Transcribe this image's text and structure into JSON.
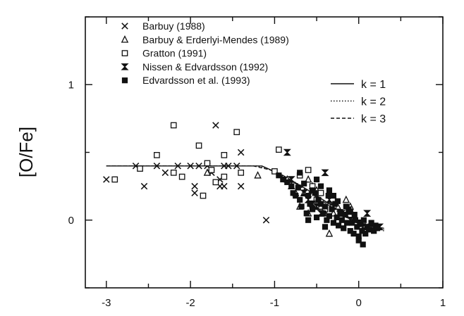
{
  "chart_data": {
    "type": "scatter",
    "ylabel": "[O/Fe]",
    "xlabel": "",
    "xlim": [
      -3.25,
      1.0
    ],
    "ylim": [
      -0.5,
      1.5
    ],
    "x_ticks": [
      -3,
      -2,
      -1,
      0,
      1
    ],
    "x_tick_labels": [
      "-3",
      "-2",
      "-1",
      "0",
      "1"
    ],
    "y_ticks": [
      0,
      1
    ],
    "y_tick_labels": [
      "0",
      "1"
    ],
    "legend_position": "top-left",
    "line_legend_position": "top-right",
    "series": [
      {
        "name": "Barbuy (1988)",
        "marker": "x",
        "points": [
          [
            -3.0,
            0.3
          ],
          [
            -2.65,
            0.4
          ],
          [
            -2.55,
            0.25
          ],
          [
            -2.4,
            0.4
          ],
          [
            -2.3,
            0.35
          ],
          [
            -2.15,
            0.4
          ],
          [
            -2.0,
            0.4
          ],
          [
            -1.95,
            0.25
          ],
          [
            -1.9,
            0.4
          ],
          [
            -1.8,
            0.4
          ],
          [
            -1.75,
            0.35
          ],
          [
            -1.7,
            0.7
          ],
          [
            -1.65,
            0.3
          ],
          [
            -1.6,
            0.25
          ],
          [
            -1.55,
            0.4
          ],
          [
            -1.45,
            0.4
          ],
          [
            -1.4,
            0.5
          ],
          [
            -1.4,
            0.25
          ],
          [
            -1.95,
            0.2
          ],
          [
            -1.1,
            0.0
          ],
          [
            -1.65,
            0.25
          ],
          [
            -1.6,
            0.4
          ]
        ]
      },
      {
        "name": "Barbuy & Erderlyi-Mendes (1989)",
        "marker": "triangle",
        "points": [
          [
            -1.8,
            0.35
          ],
          [
            -1.2,
            0.33
          ],
          [
            -0.8,
            0.25
          ],
          [
            -0.75,
            0.2
          ],
          [
            -0.7,
            0.1
          ],
          [
            -0.65,
            0.2
          ],
          [
            -0.6,
            0.05
          ],
          [
            -0.55,
            0.25
          ],
          [
            -0.5,
            0.15
          ],
          [
            -0.45,
            0.1
          ],
          [
            -0.4,
            0.05
          ],
          [
            -0.35,
            -0.1
          ],
          [
            -0.3,
            0.05
          ],
          [
            -0.25,
            0.1
          ],
          [
            -0.2,
            0.05
          ],
          [
            -0.15,
            0.15
          ],
          [
            -0.1,
            0.1
          ],
          [
            -0.6,
            0.3
          ],
          [
            -0.85,
            0.3
          ],
          [
            -0.5,
            0.22
          ]
        ]
      },
      {
        "name": "Gratton (1991)",
        "marker": "square",
        "points": [
          [
            -2.9,
            0.3
          ],
          [
            -2.6,
            0.38
          ],
          [
            -2.4,
            0.48
          ],
          [
            -2.2,
            0.7
          ],
          [
            -2.2,
            0.35
          ],
          [
            -2.1,
            0.32
          ],
          [
            -1.9,
            0.55
          ],
          [
            -1.85,
            0.18
          ],
          [
            -1.8,
            0.42
          ],
          [
            -1.75,
            0.37
          ],
          [
            -1.7,
            0.28
          ],
          [
            -1.6,
            0.48
          ],
          [
            -1.6,
            0.32
          ],
          [
            -1.45,
            0.65
          ],
          [
            -1.4,
            0.35
          ],
          [
            -1.0,
            0.36
          ],
          [
            -0.95,
            0.52
          ],
          [
            -0.7,
            0.33
          ],
          [
            -0.6,
            0.37
          ],
          [
            -0.55,
            0.25
          ],
          [
            -0.5,
            0.15
          ],
          [
            -0.45,
            0.2
          ],
          [
            -0.4,
            0.08
          ],
          [
            -0.3,
            0.1
          ]
        ]
      },
      {
        "name": "Nissen & Edvardsson (1992)",
        "marker": "bowtie",
        "points": [
          [
            -0.85,
            0.5
          ],
          [
            -0.8,
            0.3
          ],
          [
            -0.65,
            0.2
          ],
          [
            -0.6,
            0.15
          ],
          [
            -0.55,
            0.12
          ],
          [
            -0.5,
            0.1
          ],
          [
            -0.45,
            0.05
          ],
          [
            -0.4,
            0.35
          ],
          [
            -0.35,
            0.15
          ],
          [
            -0.3,
            0.1
          ],
          [
            -0.2,
            0.05
          ],
          [
            -0.1,
            0.0
          ],
          [
            0.0,
            -0.02
          ],
          [
            0.05,
            -0.05
          ],
          [
            0.1,
            0.05
          ],
          [
            0.15,
            -0.05
          ],
          [
            0.25,
            -0.05
          ]
        ]
      },
      {
        "name": "Edvardsson et al. (1993)",
        "marker": "filled-square",
        "points": [
          [
            -0.95,
            0.33
          ],
          [
            -0.9,
            0.3
          ],
          [
            -0.85,
            0.28
          ],
          [
            -0.8,
            0.25
          ],
          [
            -0.78,
            0.2
          ],
          [
            -0.75,
            0.18
          ],
          [
            -0.72,
            0.24
          ],
          [
            -0.7,
            0.15
          ],
          [
            -0.68,
            0.1
          ],
          [
            -0.65,
            0.27
          ],
          [
            -0.62,
            0.05
          ],
          [
            -0.6,
            0.18
          ],
          [
            -0.58,
            0.12
          ],
          [
            -0.55,
            0.08
          ],
          [
            -0.52,
            0.2
          ],
          [
            -0.5,
            0.02
          ],
          [
            -0.48,
            0.15
          ],
          [
            -0.45,
            0.25
          ],
          [
            -0.42,
            0.05
          ],
          [
            -0.4,
            0.1
          ],
          [
            -0.38,
            0.0
          ],
          [
            -0.36,
            0.18
          ],
          [
            -0.35,
            0.03
          ],
          [
            -0.32,
            0.08
          ],
          [
            -0.3,
            -0.02
          ],
          [
            -0.28,
            0.12
          ],
          [
            -0.26,
            0.02
          ],
          [
            -0.24,
            -0.04
          ],
          [
            -0.22,
            0.06
          ],
          [
            -0.2,
            0.0
          ],
          [
            -0.18,
            -0.06
          ],
          [
            -0.16,
            0.04
          ],
          [
            -0.14,
            -0.02
          ],
          [
            -0.12,
            0.08
          ],
          [
            -0.1,
            -0.08
          ],
          [
            -0.08,
            -0.02
          ],
          [
            -0.06,
            -0.1
          ],
          [
            -0.04,
            0.0
          ],
          [
            -0.02,
            -0.05
          ],
          [
            0.0,
            -0.12
          ],
          [
            0.02,
            -0.03
          ],
          [
            0.04,
            -0.08
          ],
          [
            0.06,
            0.0
          ],
          [
            0.08,
            -0.1
          ],
          [
            0.1,
            -0.05
          ],
          [
            0.12,
            -0.07
          ],
          [
            0.15,
            -0.02
          ],
          [
            0.18,
            -0.08
          ],
          [
            0.2,
            -0.04
          ],
          [
            0.22,
            -0.06
          ],
          [
            -0.55,
            0.22
          ],
          [
            -0.45,
            0.12
          ],
          [
            -0.35,
            0.22
          ],
          [
            -0.25,
            0.14
          ],
          [
            -0.15,
            0.1
          ],
          [
            -0.05,
            0.04
          ],
          [
            -0.6,
            0.0
          ],
          [
            -0.4,
            -0.05
          ],
          [
            0.0,
            -0.15
          ],
          [
            0.05,
            -0.18
          ],
          [
            -0.5,
            0.3
          ],
          [
            -0.7,
            0.35
          ],
          [
            -0.3,
            0.18
          ],
          [
            -0.1,
            0.06
          ]
        ]
      }
    ],
    "model_lines": [
      {
        "name": "k = 1",
        "style": "solid",
        "points": [
          [
            -3.0,
            0.4
          ],
          [
            -1.15,
            0.4
          ],
          [
            -0.9,
            0.33
          ],
          [
            -0.6,
            0.22
          ],
          [
            -0.3,
            0.1
          ],
          [
            0.0,
            -0.03
          ],
          [
            0.3,
            -0.06
          ]
        ]
      },
      {
        "name": "k = 2",
        "style": "dotted",
        "points": [
          [
            -3.0,
            0.4
          ],
          [
            -1.2,
            0.4
          ],
          [
            -1.0,
            0.36
          ],
          [
            -0.7,
            0.26
          ],
          [
            -0.4,
            0.14
          ],
          [
            -0.1,
            0.01
          ],
          [
            0.3,
            -0.07
          ]
        ]
      },
      {
        "name": "k = 3",
        "style": "dashed",
        "points": [
          [
            -3.0,
            0.4
          ],
          [
            -1.25,
            0.4
          ],
          [
            -1.05,
            0.37
          ],
          [
            -0.75,
            0.27
          ],
          [
            -0.45,
            0.15
          ],
          [
            -0.15,
            0.02
          ],
          [
            0.3,
            -0.08
          ]
        ]
      }
    ]
  }
}
